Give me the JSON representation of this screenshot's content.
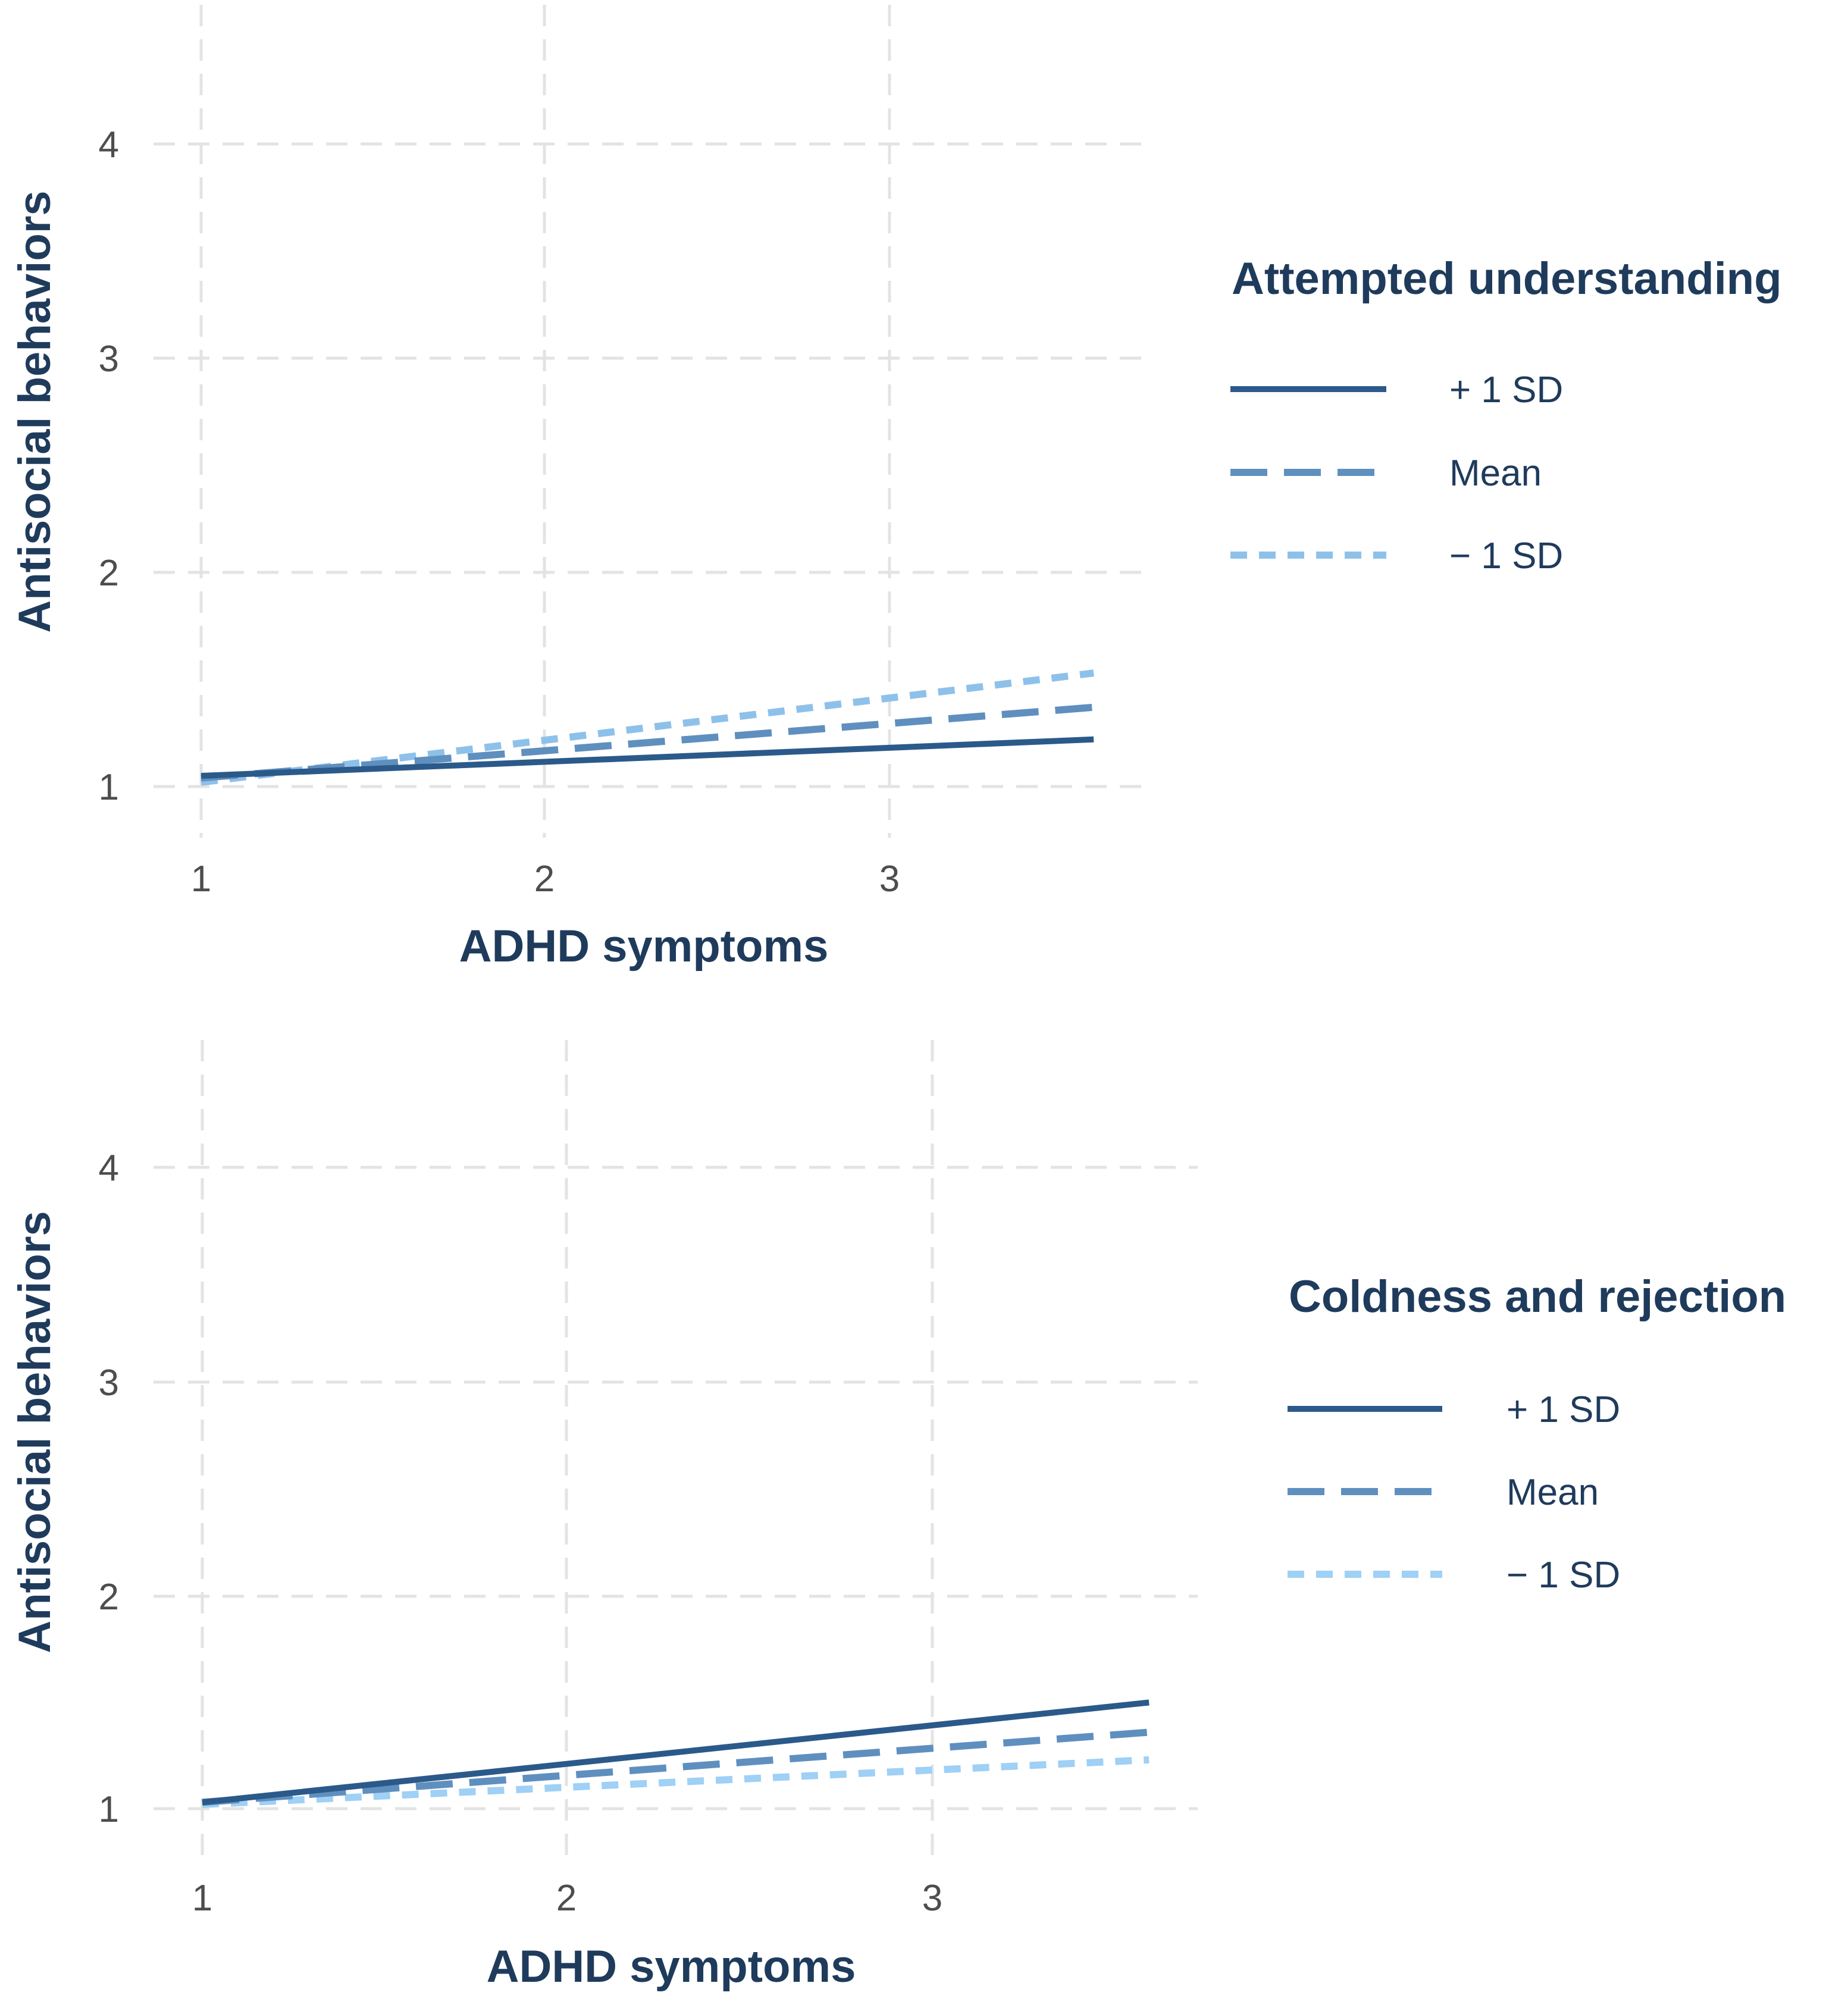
{
  "chart_data": [
    {
      "type": "line",
      "xlabel": "ADHD symptoms",
      "ylabel": "Antisocial behaviors",
      "x_ticks": [
        "1",
        "2",
        "3"
      ],
      "y_ticks": [
        "1",
        "2",
        "3",
        "4"
      ],
      "xlim": [
        1,
        3.6
      ],
      "ylim": [
        1,
        4
      ],
      "grid": true,
      "legend": {
        "title": "Attempted understanding",
        "placement": "right"
      },
      "series": [
        {
          "name": "+ 1 SD",
          "line_style": "solid",
          "color": "#2b5a8a",
          "x": [
            1,
            3.6
          ],
          "y": [
            1.05,
            1.22
          ]
        },
        {
          "name": "Mean",
          "line_style": "dashed",
          "color": "#5f8fbf",
          "x": [
            1,
            3.6
          ],
          "y": [
            1.04,
            1.37
          ]
        },
        {
          "name": "− 1 SD",
          "line_style": "dotted",
          "color": "#8ec1ea",
          "x": [
            1,
            3.6
          ],
          "y": [
            1.02,
            1.53
          ]
        }
      ]
    },
    {
      "type": "line",
      "xlabel": "ADHD symptoms",
      "ylabel": "Antisocial behaviors",
      "x_ticks": [
        "1",
        "2",
        "3"
      ],
      "y_ticks": [
        "1",
        "2",
        "3",
        "4"
      ],
      "xlim": [
        1,
        3.6
      ],
      "ylim": [
        1,
        4
      ],
      "grid": true,
      "legend": {
        "title": "Coldness and rejection",
        "placement": "right"
      },
      "series": [
        {
          "name": "+ 1 SD",
          "line_style": "solid",
          "color": "#2b5a8a",
          "x": [
            1,
            3.6
          ],
          "y": [
            1.03,
            1.5
          ]
        },
        {
          "name": "Mean",
          "line_style": "dashed",
          "color": "#5f8fbf",
          "x": [
            1,
            3.6
          ],
          "y": [
            1.03,
            1.36
          ]
        },
        {
          "name": "− 1 SD",
          "line_style": "dotted",
          "color": "#9fd0f5",
          "x": [
            1,
            3.6
          ],
          "y": [
            1.02,
            1.23
          ]
        }
      ]
    }
  ]
}
